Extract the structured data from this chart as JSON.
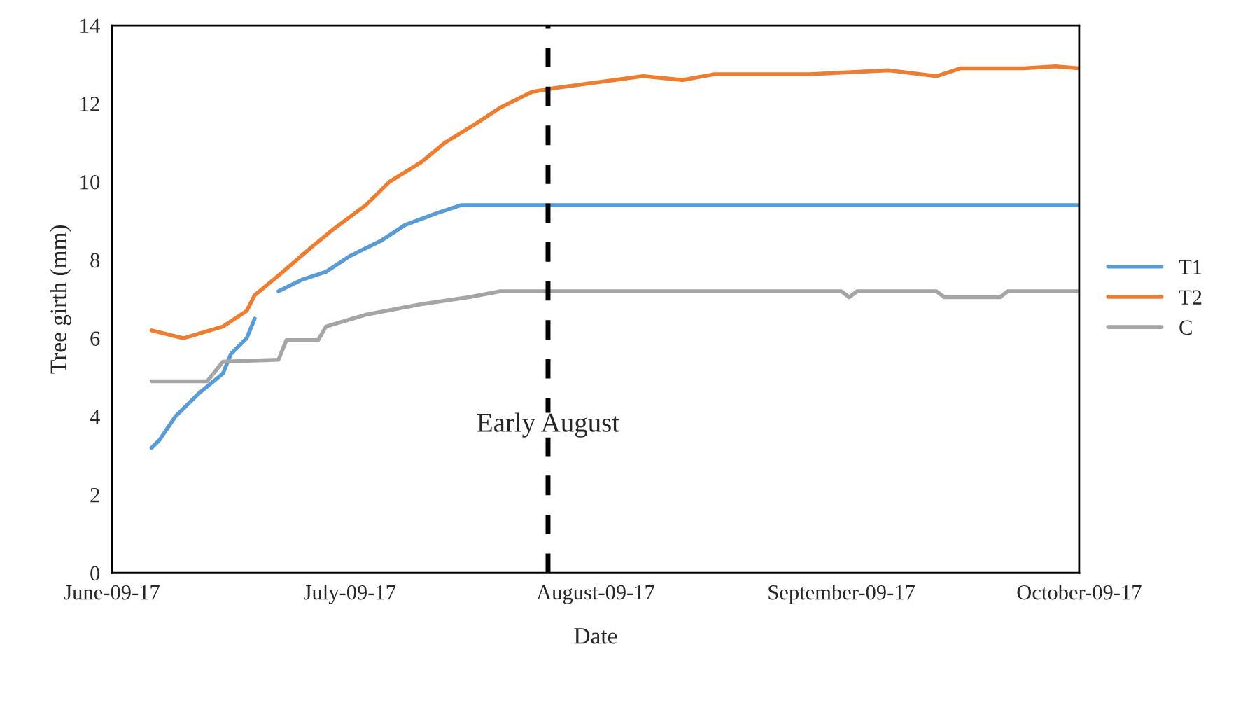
{
  "chart_data": {
    "type": "line",
    "xlabel": "Date",
    "ylabel": "Tree girth (mm)",
    "xlim": [
      "2017-06-09",
      "2017-10-09"
    ],
    "xticks": [
      {
        "value": "2017-06-09",
        "label": "June-09-17"
      },
      {
        "value": "2017-07-09",
        "label": "July-09-17"
      },
      {
        "value": "2017-08-09",
        "label": "August-09-17"
      },
      {
        "value": "2017-09-09",
        "label": "September-09-17"
      },
      {
        "value": "2017-10-09",
        "label": "October-09-17"
      }
    ],
    "ylim": [
      0,
      14
    ],
    "yticks": [
      0,
      2,
      4,
      6,
      8,
      10,
      12,
      14
    ],
    "series": [
      {
        "name": "T1",
        "color": "#5b9bd5",
        "x": [
          "2017-06-14",
          "2017-06-15",
          "2017-06-17",
          "2017-06-20",
          "2017-06-23",
          "2017-06-24",
          "2017-06-26",
          "2017-06-27",
          "2017-06-28",
          "2017-06-30",
          "2017-07-03",
          "2017-07-06",
          "2017-07-09",
          "2017-07-13",
          "2017-07-16",
          "2017-07-20",
          "2017-07-23",
          "2017-10-09"
        ],
        "values": [
          3.2,
          3.4,
          4.0,
          4.6,
          5.1,
          5.6,
          6.0,
          6.5,
          null,
          7.2,
          7.5,
          7.7,
          8.1,
          8.5,
          8.9,
          9.2,
          9.4,
          9.4
        ]
      },
      {
        "name": "T2",
        "color": "#ed7d31",
        "x": [
          "2017-06-14",
          "2017-06-18",
          "2017-06-23",
          "2017-06-26",
          "2017-06-27",
          "2017-06-30",
          "2017-07-04",
          "2017-07-07",
          "2017-07-11",
          "2017-07-14",
          "2017-07-18",
          "2017-07-21",
          "2017-07-25",
          "2017-07-28",
          "2017-08-01",
          "2017-08-04",
          "2017-08-15",
          "2017-08-20",
          "2017-08-24",
          "2017-09-05",
          "2017-09-15",
          "2017-09-21",
          "2017-09-24",
          "2017-10-02",
          "2017-10-06",
          "2017-10-09"
        ],
        "values": [
          6.2,
          6.0,
          6.3,
          6.7,
          7.1,
          7.6,
          8.3,
          8.8,
          9.4,
          10.0,
          10.5,
          11.0,
          11.5,
          11.9,
          12.3,
          12.4,
          12.7,
          12.6,
          12.75,
          12.75,
          12.85,
          12.7,
          12.9,
          12.9,
          12.95,
          12.9
        ]
      },
      {
        "name": "C",
        "color": "#a5a5a5",
        "x": [
          "2017-06-14",
          "2017-06-21",
          "2017-06-23",
          "2017-06-30",
          "2017-07-01",
          "2017-07-05",
          "2017-07-06",
          "2017-07-11",
          "2017-07-18",
          "2017-07-24",
          "2017-07-28",
          "2017-09-09",
          "2017-09-10",
          "2017-09-11",
          "2017-09-21",
          "2017-09-22",
          "2017-09-29",
          "2017-09-30",
          "2017-10-09"
        ],
        "values": [
          4.9,
          4.9,
          5.4,
          5.45,
          5.95,
          5.95,
          6.3,
          6.6,
          6.87,
          7.05,
          7.2,
          7.2,
          7.05,
          7.2,
          7.2,
          7.05,
          7.05,
          7.2,
          7.2
        ]
      }
    ],
    "ref_lines": [
      {
        "axis": "x",
        "value": "2017-08-03",
        "label": "Early August",
        "color": "#000000",
        "line_style": "dashed"
      }
    ],
    "legend": "right",
    "grid": false,
    "marker": "none",
    "line_style": "solid"
  }
}
